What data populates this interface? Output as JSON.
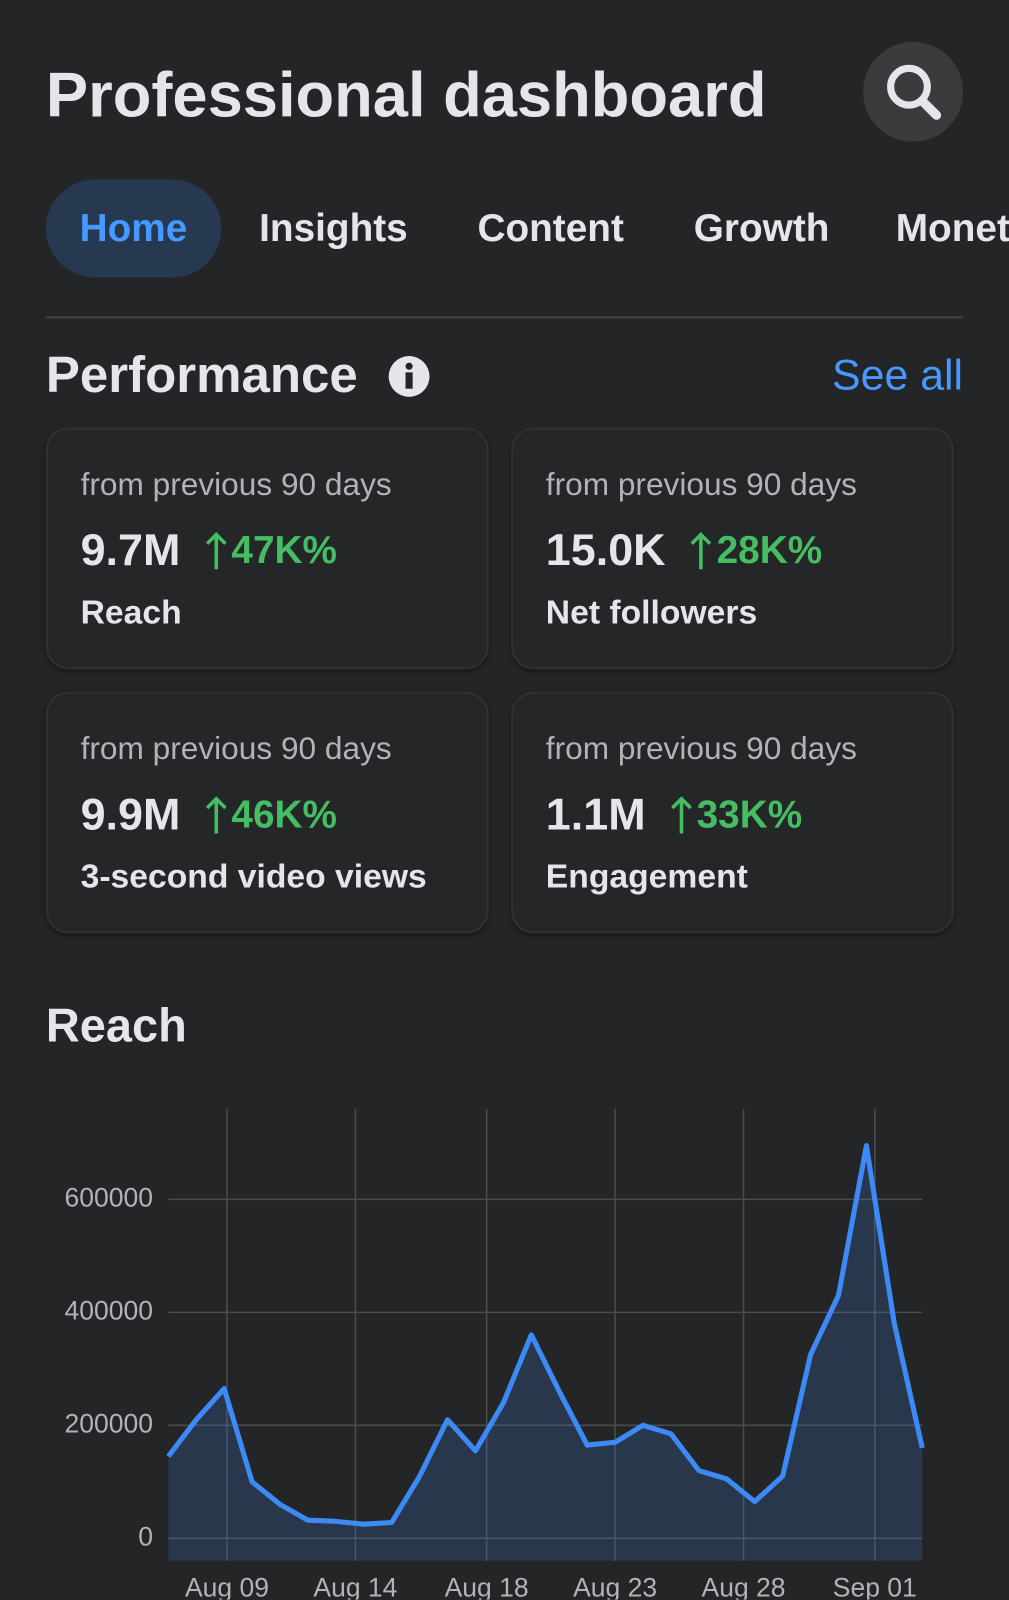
{
  "header": {
    "title": "Professional dashboard"
  },
  "tabs": [
    "Home",
    "Insights",
    "Content",
    "Growth",
    "Monet"
  ],
  "performance": {
    "title": "Performance",
    "link": "See all",
    "cards": [
      {
        "period": "from previous 90 days",
        "value": "9.7M",
        "change": "47K%",
        "label": "Reach"
      },
      {
        "period": "from previous 90 days",
        "value": "15.0K",
        "change": "28K%",
        "label": "Net followers"
      },
      {
        "period": "from previous 90 days",
        "value": "9.9M",
        "change": "46K%",
        "label": "3-second video views"
      },
      {
        "period": "from previous 90 days",
        "value": "1.1M",
        "change": "33K%",
        "label": "Engagement"
      }
    ]
  },
  "chart_data": {
    "type": "line",
    "title": "Reach",
    "x": [
      7,
      8,
      9,
      10,
      11,
      12,
      13,
      14,
      15,
      16,
      17,
      18,
      19,
      20,
      21,
      22,
      23,
      24,
      25,
      26,
      27,
      28,
      29,
      30,
      31,
      32,
      33,
      34
    ],
    "values": [
      145000,
      210000,
      265000,
      100000,
      60000,
      32000,
      30000,
      25000,
      28000,
      110000,
      210000,
      155000,
      240000,
      360000,
      260000,
      165000,
      170000,
      200000,
      185000,
      120000,
      105000,
      65000,
      110000,
      325000,
      430000,
      695000,
      380000,
      160000
    ],
    "color": "#3d8af7",
    "xlim": [
      7,
      34
    ],
    "xticks": [
      {
        "value": 9.1,
        "label": "Aug 09"
      },
      {
        "value": 13.7,
        "label": "Aug 14"
      },
      {
        "value": 18.4,
        "label": "Aug 18"
      },
      {
        "value": 23.0,
        "label": "Aug 23"
      },
      {
        "value": 27.6,
        "label": "Aug 28"
      },
      {
        "value": 32.3,
        "label": "Sep 01"
      }
    ],
    "ylim": [
      -40000,
      760000
    ],
    "yticks": [
      0,
      200000,
      400000,
      600000
    ],
    "grid": true
  }
}
